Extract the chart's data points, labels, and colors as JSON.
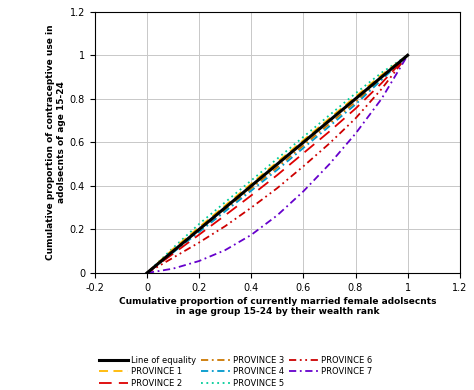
{
  "xlabel": "Cumulative proportion of currently married female adolsecnts\nin age group 15-24 by their wealth rank",
  "ylabel": "Cumulative proportion of contraceptive use in\nadolsecnts of age 15-24",
  "xlim": [
    -0.2,
    1.2
  ],
  "ylim": [
    0,
    1.2
  ],
  "xticks": [
    -0.2,
    0,
    0.2,
    0.4,
    0.6,
    0.8,
    1.0,
    1.2
  ],
  "yticks": [
    0,
    0.2,
    0.4,
    0.6,
    0.8,
    1.0,
    1.2
  ],
  "background": "#ffffff",
  "grid_color": "#c8c8c8",
  "series": [
    {
      "name": "Line of equality",
      "x": [
        0,
        1
      ],
      "y": [
        0,
        1
      ],
      "color": "#000000",
      "linewidth": 2.2,
      "linestyle": "solid",
      "dashes": null,
      "zorder": 10
    },
    {
      "name": "PROVINCE 5",
      "x": [
        0,
        0.1,
        0.2,
        0.3,
        0.4,
        0.5,
        0.6,
        0.7,
        0.8,
        0.9,
        1.0
      ],
      "y": [
        0,
        0.115,
        0.225,
        0.325,
        0.425,
        0.525,
        0.625,
        0.725,
        0.825,
        0.92,
        1.0
      ],
      "color": "#00CC99",
      "linewidth": 1.3,
      "linestyle": "dotted",
      "dashes": [
        1,
        2
      ],
      "zorder": 4
    },
    {
      "name": "PROVINCE 1",
      "x": [
        0,
        0.1,
        0.2,
        0.3,
        0.4,
        0.5,
        0.6,
        0.7,
        0.8,
        0.9,
        1.0
      ],
      "y": [
        0,
        0.11,
        0.21,
        0.31,
        0.41,
        0.51,
        0.61,
        0.71,
        0.81,
        0.91,
        1.0
      ],
      "color": "#FFB800",
      "linewidth": 1.3,
      "linestyle": "dashed",
      "dashes": [
        5,
        3
      ],
      "zorder": 5
    },
    {
      "name": "PROVINCE 3",
      "x": [
        0,
        0.1,
        0.2,
        0.3,
        0.4,
        0.5,
        0.6,
        0.7,
        0.8,
        0.9,
        1.0
      ],
      "y": [
        0,
        0.097,
        0.194,
        0.291,
        0.388,
        0.485,
        0.585,
        0.685,
        0.785,
        0.893,
        1.0
      ],
      "color": "#CC7700",
      "linewidth": 1.3,
      "linestyle": "dashdot",
      "dashes": [
        4,
        2,
        1,
        2
      ],
      "zorder": 5
    },
    {
      "name": "PROVINCE 4",
      "x": [
        0,
        0.1,
        0.2,
        0.3,
        0.4,
        0.5,
        0.6,
        0.7,
        0.8,
        0.9,
        1.0
      ],
      "y": [
        0,
        0.094,
        0.188,
        0.283,
        0.378,
        0.474,
        0.574,
        0.674,
        0.774,
        0.887,
        1.0
      ],
      "color": "#0099CC",
      "linewidth": 1.3,
      "linestyle": "dashdot",
      "dashes": [
        4,
        2,
        1,
        2
      ],
      "zorder": 5
    },
    {
      "name": "PROVINCE 2",
      "x": [
        0,
        0.1,
        0.2,
        0.3,
        0.4,
        0.5,
        0.6,
        0.7,
        0.8,
        0.9,
        1.0
      ],
      "y": [
        0,
        0.088,
        0.176,
        0.265,
        0.356,
        0.45,
        0.55,
        0.65,
        0.755,
        0.872,
        1.0
      ],
      "color": "#DD0000",
      "linewidth": 1.3,
      "linestyle": "dashed",
      "dashes": [
        7,
        4
      ],
      "zorder": 5
    },
    {
      "name": "PROVINCE 6",
      "x": [
        0,
        0.1,
        0.2,
        0.3,
        0.4,
        0.5,
        0.6,
        0.7,
        0.8,
        0.9,
        1.0
      ],
      "y": [
        0,
        0.07,
        0.14,
        0.215,
        0.3,
        0.39,
        0.49,
        0.595,
        0.71,
        0.845,
        1.0
      ],
      "color": "#CC0000",
      "linewidth": 1.3,
      "linestyle": "dashdot",
      "dashes": [
        4,
        2,
        1,
        2,
        1,
        2
      ],
      "zorder": 5
    },
    {
      "name": "PROVINCE 7",
      "x": [
        0,
        0.1,
        0.2,
        0.3,
        0.4,
        0.5,
        0.6,
        0.7,
        0.8,
        0.9,
        1.0
      ],
      "y": [
        0,
        0.02,
        0.055,
        0.105,
        0.175,
        0.265,
        0.375,
        0.5,
        0.64,
        0.8,
        1.0
      ],
      "color": "#6600CC",
      "linewidth": 1.3,
      "linestyle": "dashdot",
      "dashes": [
        4,
        2,
        1,
        2
      ],
      "zorder": 5
    }
  ],
  "legend_order": [
    {
      "name": "Line of equality",
      "color": "#000000",
      "linestyle": "solid",
      "dashes": null,
      "linewidth": 2.2
    },
    {
      "name": "PROVINCE 1",
      "color": "#FFB800",
      "linestyle": "dashed",
      "dashes": [
        5,
        3
      ],
      "linewidth": 1.3
    },
    {
      "name": "PROVINCE 2",
      "color": "#DD0000",
      "linestyle": "dashed",
      "dashes": [
        7,
        4
      ],
      "linewidth": 1.3
    },
    {
      "name": "PROVINCE 3",
      "color": "#CC7700",
      "linestyle": "dashdot",
      "dashes": [
        4,
        2,
        1,
        2
      ],
      "linewidth": 1.3
    },
    {
      "name": "PROVINCE 4",
      "color": "#0099CC",
      "linestyle": "dashdot",
      "dashes": [
        4,
        2,
        1,
        2
      ],
      "linewidth": 1.3
    },
    {
      "name": "PROVINCE 5",
      "color": "#00CC99",
      "linestyle": "dotted",
      "dashes": [
        1,
        2
      ],
      "linewidth": 1.3
    },
    {
      "name": "PROVINCE 6",
      "color": "#CC0000",
      "linestyle": "dashdot",
      "dashes": [
        4,
        2,
        1,
        2,
        1,
        2
      ],
      "linewidth": 1.3
    },
    {
      "name": "PROVINCE 7",
      "color": "#6600CC",
      "linestyle": "dashdot",
      "dashes": [
        4,
        2,
        1,
        2
      ],
      "linewidth": 1.3
    }
  ]
}
